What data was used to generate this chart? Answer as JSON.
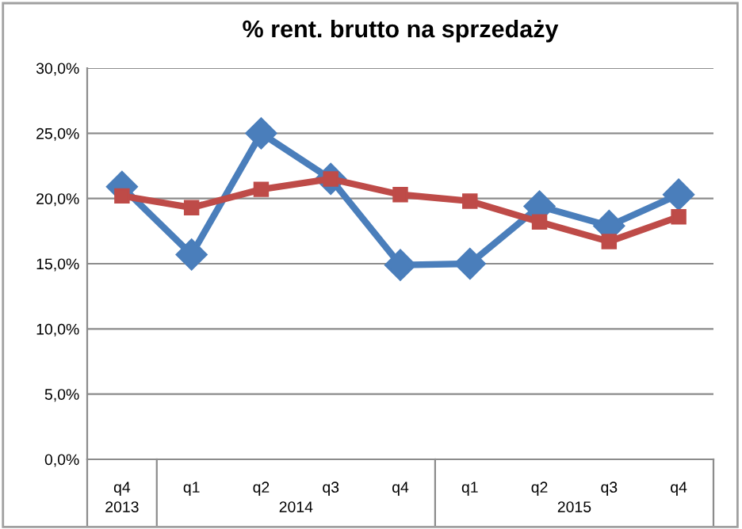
{
  "chart_data": {
    "type": "line",
    "title": "% rent. brutto na sprzedaży",
    "categories": [
      "q4",
      "q1",
      "q2",
      "q3",
      "q4",
      "q1",
      "q2",
      "q3",
      "q4"
    ],
    "annotations": [
      "2013",
      "2014",
      "2015"
    ],
    "series": [
      {
        "color": "#4a7ebb",
        "marker": "diamond",
        "values": [
          20.9,
          15.7,
          25.0,
          21.5,
          14.9,
          15.0,
          19.4,
          17.9,
          20.3
        ]
      },
      {
        "color": "#be4b48",
        "marker": "square",
        "values": [
          20.2,
          19.3,
          20.7,
          21.5,
          20.3,
          19.8,
          18.2,
          16.7,
          18.6
        ]
      }
    ],
    "ylim": [
      0,
      30
    ],
    "yticks": [
      {
        "value": 0,
        "label": "0,0%"
      },
      {
        "value": 5,
        "label": "5,0%"
      },
      {
        "value": 10,
        "label": "10,0%"
      },
      {
        "value": 15,
        "label": "15,0%"
      },
      {
        "value": 20,
        "label": "20,0%"
      },
      {
        "value": 25,
        "label": "25,0%"
      },
      {
        "value": 30,
        "label": "30,0%"
      }
    ],
    "grid": "y",
    "legend": false
  }
}
